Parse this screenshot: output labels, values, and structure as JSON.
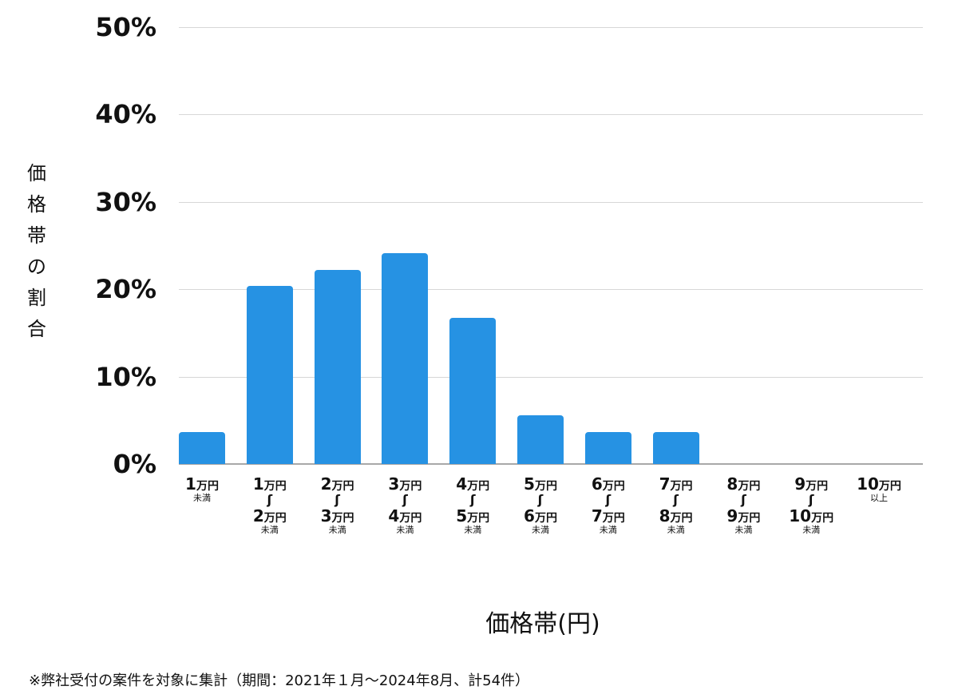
{
  "chart_data": {
    "type": "bar",
    "title": "",
    "xlabel": "価格帯(円)",
    "ylabel": "価格帯の割合",
    "ylim": [
      0,
      50
    ],
    "yticks": [
      "0%",
      "10%",
      "20%",
      "30%",
      "40%",
      "50%"
    ],
    "grid": true,
    "color": "#2692e3",
    "categories": [
      "1万円未満",
      "1万円〜2万円未満",
      "2万円〜3万円未満",
      "3万円〜4万円未満",
      "4万円〜5万円未満",
      "5万円〜6万円未満",
      "6万円〜7万円未満",
      "7万円〜8万円未満",
      "8万円〜9万円未満",
      "9万円〜10万円未満",
      "10万円以上"
    ],
    "values": [
      3.7,
      20.4,
      22.2,
      24.1,
      16.7,
      5.6,
      3.7,
      3.7,
      0,
      0,
      0
    ],
    "counts": [
      2,
      11,
      12,
      13,
      9,
      3,
      2,
      2,
      0,
      0,
      0
    ]
  },
  "labels": {
    "ylabel_chars": [
      "価",
      "格",
      "帯",
      "の",
      "割",
      "合"
    ],
    "xlabel": "価格帯(円)",
    "note": "※弊社受付の案件を対象に集計（期間：2021年１月〜2024年8月、計54件）",
    "unit": "万円",
    "under": "未満",
    "over": "以上",
    "tilde": "∫",
    "cats": [
      {
        "a": "1",
        "b": null,
        "suffix": "未満"
      },
      {
        "a": "1",
        "b": "2",
        "suffix": "未満"
      },
      {
        "a": "2",
        "b": "3",
        "suffix": "未満"
      },
      {
        "a": "3",
        "b": "4",
        "suffix": "未満"
      },
      {
        "a": "4",
        "b": "5",
        "suffix": "未満"
      },
      {
        "a": "5",
        "b": "6",
        "suffix": "未満"
      },
      {
        "a": "6",
        "b": "7",
        "suffix": "未満"
      },
      {
        "a": "7",
        "b": "8",
        "suffix": "未満"
      },
      {
        "a": "8",
        "b": "9",
        "suffix": "未満"
      },
      {
        "a": "9",
        "b": "10",
        "suffix": "未満"
      },
      {
        "a": "10",
        "b": null,
        "suffix": "以上"
      }
    ]
  }
}
